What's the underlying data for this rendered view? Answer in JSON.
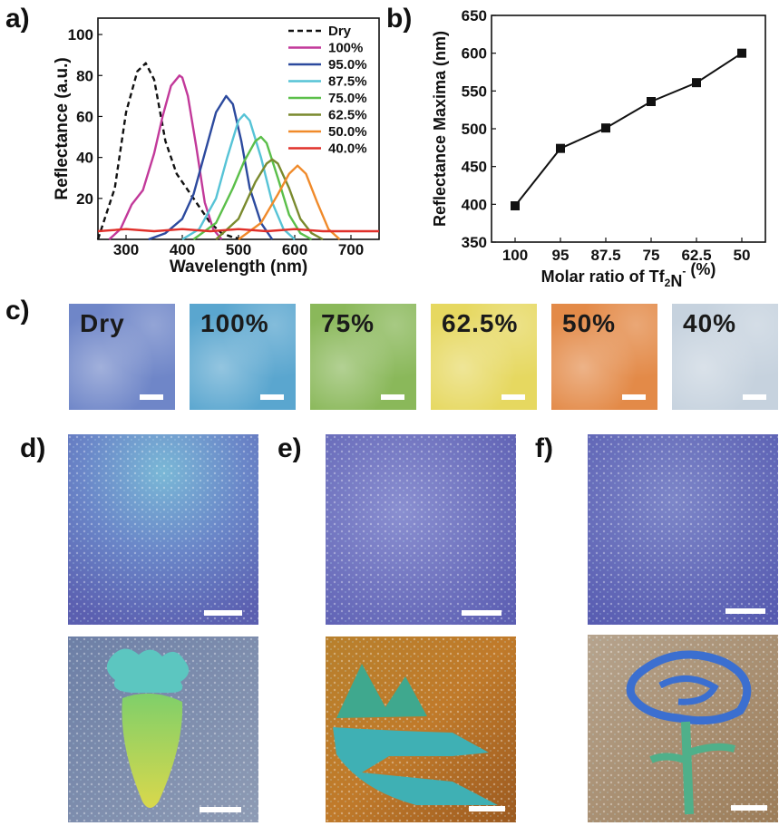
{
  "panel_letters": {
    "a": "a)",
    "b": "b)",
    "c": "c)",
    "d": "d)",
    "e": "e)",
    "f": "f)"
  },
  "colors": {
    "dry": "#111111",
    "s100": "#c2399a",
    "s95": "#2c4a9e",
    "s875": "#56c3d6",
    "s75": "#5bbf4a",
    "s625": "#7a8a2e",
    "s50": "#f08a2a",
    "s40": "#e0302a"
  },
  "chart_data": [
    {
      "type": "line",
      "panel": "a",
      "xlabel": "Wavelength (nm)",
      "ylabel": "Reflectance (a.u.)",
      "xlim": [
        250,
        750
      ],
      "ylim": [
        0,
        108
      ],
      "xticks": [
        300,
        400,
        500,
        600,
        700
      ],
      "yticks": [
        20,
        40,
        60,
        80,
        100
      ],
      "legend_position": "top-right",
      "series": [
        {
          "name": "Dry",
          "color": "#111111",
          "dashed": true,
          "x": [
            250,
            280,
            300,
            320,
            335,
            350,
            370,
            390,
            410,
            430,
            450,
            470,
            490,
            510
          ],
          "y": [
            0,
            25,
            62,
            82,
            86,
            78,
            48,
            32,
            24,
            16,
            8,
            3,
            1,
            0
          ]
        },
        {
          "name": "100%",
          "color": "#c2399a",
          "dashed": false,
          "x": [
            270,
            290,
            310,
            330,
            350,
            365,
            380,
            395,
            400,
            410,
            425,
            440,
            455,
            470
          ],
          "y": [
            0,
            5,
            17,
            24,
            42,
            60,
            75,
            80,
            79,
            70,
            45,
            18,
            5,
            0
          ]
        },
        {
          "name": "95.0%",
          "color": "#2c4a9e",
          "dashed": false,
          "x": [
            340,
            370,
            400,
            420,
            440,
            460,
            478,
            490,
            505,
            520,
            540,
            560
          ],
          "y": [
            0,
            3,
            10,
            22,
            42,
            62,
            70,
            66,
            48,
            25,
            8,
            0
          ]
        },
        {
          "name": "87.5%",
          "color": "#56c3d6",
          "dashed": false,
          "x": [
            400,
            430,
            460,
            480,
            500,
            510,
            520,
            540,
            560,
            580,
            600
          ],
          "y": [
            0,
            5,
            20,
            40,
            58,
            61,
            58,
            40,
            18,
            5,
            0
          ]
        },
        {
          "name": "75.0%",
          "color": "#5bbf4a",
          "dashed": false,
          "x": [
            420,
            460,
            490,
            510,
            530,
            540,
            550,
            570,
            590,
            610,
            630
          ],
          "y": [
            0,
            8,
            25,
            38,
            48,
            50,
            47,
            30,
            12,
            3,
            0
          ]
        },
        {
          "name": "62.5%",
          "color": "#7a8a2e",
          "dashed": false,
          "x": [
            460,
            500,
            530,
            550,
            560,
            570,
            590,
            610,
            630,
            650
          ],
          "y": [
            0,
            10,
            28,
            37,
            39,
            37,
            25,
            10,
            3,
            0
          ]
        },
        {
          "name": "50.0%",
          "color": "#f08a2a",
          "dashed": false,
          "x": [
            500,
            540,
            570,
            590,
            605,
            620,
            640,
            660,
            680
          ],
          "y": [
            0,
            8,
            22,
            32,
            36,
            32,
            18,
            5,
            0
          ]
        },
        {
          "name": "40.0%",
          "color": "#e0302a",
          "dashed": false,
          "x": [
            250,
            300,
            350,
            400,
            450,
            500,
            550,
            600,
            650,
            700,
            750
          ],
          "y": [
            4,
            5,
            4,
            5,
            4,
            5,
            4,
            5,
            4,
            4,
            4
          ]
        }
      ]
    },
    {
      "type": "line",
      "panel": "b",
      "xlabel_main": "Molar ratio of Tf",
      "xlabel_sub": "2",
      "xlabel_mid": "N",
      "xlabel_sup": "-",
      "xlabel_end": " (%)",
      "ylabel": "Reflectance Maxima (nm)",
      "ylim": [
        350,
        650
      ],
      "yticks": [
        350,
        400,
        450,
        500,
        550,
        600,
        650
      ],
      "categories": [
        "100",
        "95",
        "87.5",
        "75",
        "62.5",
        "50"
      ],
      "values": [
        398,
        474,
        501,
        536,
        561,
        600
      ],
      "marker": "square",
      "color": "#111111"
    }
  ],
  "strip_c": [
    {
      "label": "Dry",
      "bg": "#6f86c8"
    },
    {
      "label": "100%",
      "bg": "#5aa6cf"
    },
    {
      "label": "75%",
      "bg": "#8ab85a"
    },
    {
      "label": "62.5%",
      "bg": "#e6d860"
    },
    {
      "label": "50%",
      "bg": "#e38a48"
    },
    {
      "label": "40%",
      "bg": "#c6d2de"
    }
  ]
}
